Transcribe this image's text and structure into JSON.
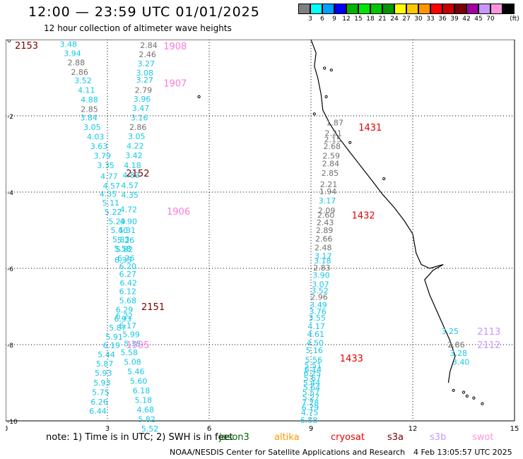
{
  "header": {
    "title": "12:00 — 23:59 UTC 01/01/2025",
    "subtitle": "12 hour collection of altimeter wave heights"
  },
  "color_scale": {
    "unit": "(ft)",
    "bins": [
      {
        "label": "",
        "color": "#7f7f7f"
      },
      {
        "label": "3",
        "color": "#00ffff"
      },
      {
        "label": "6",
        "color": "#00a0ff"
      },
      {
        "label": "9",
        "color": "#0000ff"
      },
      {
        "label": "12",
        "color": "#00b400"
      },
      {
        "label": "15",
        "color": "#00e600"
      },
      {
        "label": "18",
        "color": "#00c800"
      },
      {
        "label": "21",
        "color": "#009600"
      },
      {
        "label": "24",
        "color": "#ffff00"
      },
      {
        "label": "27",
        "color": "#ffc800"
      },
      {
        "label": "30",
        "color": "#ff9600"
      },
      {
        "label": "33",
        "color": "#ff0000"
      },
      {
        "label": "36",
        "color": "#c80000"
      },
      {
        "label": "39",
        "color": "#780000"
      },
      {
        "label": "42",
        "color": "#a000a0"
      },
      {
        "label": "45",
        "color": "#c896ff"
      },
      {
        "label": "70",
        "color": "#ff96dc"
      },
      {
        "label": "",
        "color": "#000000"
      }
    ]
  },
  "axes": {
    "x_ticks": [
      "0",
      "3",
      "6",
      "9",
      "12",
      "15"
    ],
    "y_ticks": [
      "0",
      "-2",
      "-4",
      "-6",
      "-8",
      "-10"
    ]
  },
  "colors": {
    "gray": "#707070",
    "cyan": "#14c8e6",
    "pink": "#ff78dc",
    "darkred": "#780000",
    "red": "#e60000"
  },
  "passes": [
    {
      "label": "2153",
      "x": 0.27,
      "y": -0.15,
      "color": "darkred"
    },
    {
      "label": "2152",
      "x": 3.55,
      "y": -3.5,
      "color": "darkred"
    },
    {
      "label": "2151",
      "x": 4.0,
      "y": -7.0,
      "color": "darkred"
    },
    {
      "label": "1908",
      "x": 4.65,
      "y": -0.17,
      "color": "pink"
    },
    {
      "label": "1907",
      "x": 4.65,
      "y": -1.14,
      "color": "pink"
    },
    {
      "label": "1906",
      "x": 4.75,
      "y": -4.5,
      "color": "pink"
    },
    {
      "label": "1905",
      "x": 3.55,
      "y": -8.0,
      "color": "pink"
    },
    {
      "label": "1431",
      "x": 10.4,
      "y": -2.3,
      "color": "red"
    },
    {
      "label": "1432",
      "x": 10.2,
      "y": -4.6,
      "color": "red"
    },
    {
      "label": "1433",
      "x": 9.85,
      "y": -8.35,
      "color": "red"
    },
    {
      "label": "2113",
      "x": 13.9,
      "y": -7.65,
      "color": "lavender"
    },
    {
      "label": "2112",
      "x": 13.9,
      "y": -8.0,
      "color": "lavender"
    }
  ],
  "measurements": [
    {
      "v": "3.48",
      "x": 1.85,
      "y": -0.12,
      "c": "cyan"
    },
    {
      "v": "3.94",
      "x": 1.97,
      "y": -0.36,
      "c": "cyan"
    },
    {
      "v": "2.88",
      "x": 2.08,
      "y": -0.6,
      "c": "gray"
    },
    {
      "v": "2.86",
      "x": 2.18,
      "y": -0.85,
      "c": "gray"
    },
    {
      "v": "3.52",
      "x": 2.28,
      "y": -1.07,
      "c": "cyan"
    },
    {
      "v": "4.11",
      "x": 2.38,
      "y": -1.32,
      "c": "cyan"
    },
    {
      "v": "4.88",
      "x": 2.47,
      "y": -1.57,
      "c": "cyan"
    },
    {
      "v": "2.85",
      "x": 2.47,
      "y": -1.82,
      "c": "gray"
    },
    {
      "v": "3.84",
      "x": 2.45,
      "y": -2.05,
      "c": "cyan"
    },
    {
      "v": "3.05",
      "x": 2.55,
      "y": -2.3,
      "c": "cyan"
    },
    {
      "v": "4.03",
      "x": 2.65,
      "y": -2.55,
      "c": "cyan"
    },
    {
      "v": "3.63",
      "x": 2.75,
      "y": -2.8,
      "c": "cyan"
    },
    {
      "v": "3.79",
      "x": 2.85,
      "y": -3.05,
      "c": "cyan"
    },
    {
      "v": "3.35",
      "x": 2.95,
      "y": -3.3,
      "c": "cyan"
    },
    {
      "v": "4.77",
      "x": 3.05,
      "y": -3.58,
      "c": "cyan"
    },
    {
      "v": "4.57",
      "x": 3.12,
      "y": -3.83,
      "c": "cyan"
    },
    {
      "v": "4.35",
      "x": 3.02,
      "y": -4.05,
      "c": "cyan"
    },
    {
      "v": "5.11",
      "x": 3.1,
      "y": -4.28,
      "c": "cyan"
    },
    {
      "v": "5.22",
      "x": 3.17,
      "y": -4.52,
      "c": "cyan"
    },
    {
      "v": "5.29",
      "x": 3.28,
      "y": -4.77,
      "c": "cyan"
    },
    {
      "v": "5.40",
      "x": 3.35,
      "y": -5.0,
      "c": "cyan"
    },
    {
      "v": "5.83",
      "x": 3.4,
      "y": -5.24,
      "c": "cyan"
    },
    {
      "v": "5.58",
      "x": 3.45,
      "y": -5.48,
      "c": "cyan"
    },
    {
      "v": "6.26",
      "x": 3.55,
      "y": -5.73,
      "c": "cyan"
    },
    {
      "v": "6.20",
      "x": 3.6,
      "y": -5.94,
      "c": "cyan"
    },
    {
      "v": "6.27",
      "x": 3.6,
      "y": -6.15,
      "c": "cyan"
    },
    {
      "v": "6.42",
      "x": 3.62,
      "y": -6.38,
      "c": "cyan"
    },
    {
      "v": "6.12",
      "x": 3.6,
      "y": -6.6,
      "c": "cyan"
    },
    {
      "v": "5.68",
      "x": 3.6,
      "y": -6.84,
      "c": "cyan"
    },
    {
      "v": "6.29",
      "x": 3.5,
      "y": -7.08,
      "c": "cyan"
    },
    {
      "v": "6.93",
      "x": 3.45,
      "y": -7.32,
      "c": "cyan"
    },
    {
      "v": "5.87",
      "x": 3.3,
      "y": -7.56,
      "c": "cyan"
    },
    {
      "v": "5.91",
      "x": 3.2,
      "y": -7.8,
      "c": "cyan"
    },
    {
      "v": "6.19",
      "x": 3.12,
      "y": -8.02,
      "c": "cyan"
    },
    {
      "v": "5.44",
      "x": 2.97,
      "y": -8.26,
      "c": "cyan"
    },
    {
      "v": "5.87",
      "x": 2.92,
      "y": -8.5,
      "c": "cyan"
    },
    {
      "v": "5.93",
      "x": 2.88,
      "y": -8.74,
      "c": "cyan"
    },
    {
      "v": "5.93",
      "x": 2.84,
      "y": -9.0,
      "c": "cyan"
    },
    {
      "v": "5.75",
      "x": 2.8,
      "y": -9.25,
      "c": "cyan"
    },
    {
      "v": "6.26",
      "x": 2.76,
      "y": -9.5,
      "c": "cyan"
    },
    {
      "v": "6.44",
      "x": 2.72,
      "y": -9.74,
      "c": "cyan"
    },
    {
      "v": "2.84",
      "x": 4.22,
      "y": -0.15,
      "c": "gray"
    },
    {
      "v": "2.46",
      "x": 4.18,
      "y": -0.39,
      "c": "gray"
    },
    {
      "v": "3.27",
      "x": 4.14,
      "y": -0.63,
      "c": "cyan"
    },
    {
      "v": "3.08",
      "x": 4.1,
      "y": -0.87,
      "c": "cyan"
    },
    {
      "v": "3.27",
      "x": 4.1,
      "y": -1.06,
      "c": "cyan"
    },
    {
      "v": "2.79",
      "x": 4.06,
      "y": -1.32,
      "c": "gray"
    },
    {
      "v": "3.96",
      "x": 4.02,
      "y": -1.56,
      "c": "cyan"
    },
    {
      "v": "3.47",
      "x": 3.98,
      "y": -1.8,
      "c": "cyan"
    },
    {
      "v": "3.16",
      "x": 3.94,
      "y": -2.05,
      "c": "cyan"
    },
    {
      "v": "2.86",
      "x": 3.9,
      "y": -2.3,
      "c": "gray"
    },
    {
      "v": "3.05",
      "x": 3.86,
      "y": -2.54,
      "c": "cyan"
    },
    {
      "v": "4.22",
      "x": 3.82,
      "y": -2.79,
      "c": "cyan"
    },
    {
      "v": "3.42",
      "x": 3.78,
      "y": -3.04,
      "c": "cyan"
    },
    {
      "v": "4.18",
      "x": 3.74,
      "y": -3.3,
      "c": "cyan"
    },
    {
      "v": "4.83",
      "x": 3.7,
      "y": -3.56,
      "c": "cyan"
    },
    {
      "v": "4.57",
      "x": 3.66,
      "y": -3.82,
      "c": "cyan"
    },
    {
      "v": "4.35",
      "x": 3.66,
      "y": -4.07,
      "c": "cyan"
    },
    {
      "v": "4.72",
      "x": 3.62,
      "y": -4.45,
      "c": "cyan"
    },
    {
      "v": "4.90",
      "x": 3.62,
      "y": -4.77,
      "c": "cyan"
    },
    {
      "v": "5.31",
      "x": 3.58,
      "y": -5.0,
      "c": "cyan"
    },
    {
      "v": "5.26",
      "x": 3.54,
      "y": -5.26,
      "c": "cyan"
    },
    {
      "v": "5.82",
      "x": 3.5,
      "y": -5.5,
      "c": "cyan"
    },
    {
      "v": "6.35",
      "x": 3.46,
      "y": -5.78,
      "c": "cyan"
    },
    {
      "v": "6.22",
      "x": 3.5,
      "y": -7.25,
      "c": "cyan"
    },
    {
      "v": "6.17",
      "x": 3.6,
      "y": -7.5,
      "c": "cyan"
    },
    {
      "v": "5.99",
      "x": 3.7,
      "y": -7.73,
      "c": "cyan"
    },
    {
      "v": "5.35",
      "x": 3.74,
      "y": -7.97,
      "c": "cyan"
    },
    {
      "v": "5.58",
      "x": 3.64,
      "y": -8.2,
      "c": "cyan"
    },
    {
      "v": "5.08",
      "x": 3.74,
      "y": -8.45,
      "c": "cyan"
    },
    {
      "v": "5.46",
      "x": 3.84,
      "y": -8.7,
      "c": "cyan"
    },
    {
      "v": "5.60",
      "x": 3.92,
      "y": -8.95,
      "c": "cyan"
    },
    {
      "v": "6.18",
      "x": 4.0,
      "y": -9.2,
      "c": "cyan"
    },
    {
      "v": "5.18",
      "x": 4.06,
      "y": -9.45,
      "c": "cyan"
    },
    {
      "v": "4.68",
      "x": 4.12,
      "y": -9.7,
      "c": "cyan"
    },
    {
      "v": "5.82",
      "x": 4.16,
      "y": -9.95,
      "c": "cyan"
    },
    {
      "v": "5.52",
      "x": 4.25,
      "y": -10.2,
      "c": "cyan"
    },
    {
      "v": "1.87",
      "x": 9.7,
      "y": -2.18,
      "c": "gray"
    },
    {
      "v": "2.21",
      "x": 9.66,
      "y": -2.45,
      "c": "gray"
    },
    {
      "v": "2.15",
      "x": 9.64,
      "y": -2.62,
      "c": "gray"
    },
    {
      "v": "2.68",
      "x": 9.62,
      "y": -2.8,
      "c": "gray"
    },
    {
      "v": "2.59",
      "x": 9.6,
      "y": -3.05,
      "c": "gray"
    },
    {
      "v": "2.84",
      "x": 9.58,
      "y": -3.25,
      "c": "gray"
    },
    {
      "v": "2.85",
      "x": 9.56,
      "y": -3.5,
      "c": "gray"
    },
    {
      "v": "2.21",
      "x": 9.52,
      "y": -3.8,
      "c": "gray"
    },
    {
      "v": "1.94",
      "x": 9.5,
      "y": -3.98,
      "c": "gray"
    },
    {
      "v": "3.17",
      "x": 9.48,
      "y": -4.22,
      "c": "cyan"
    },
    {
      "v": "2.09",
      "x": 9.46,
      "y": -4.48,
      "c": "gray"
    },
    {
      "v": "2.60",
      "x": 9.44,
      "y": -4.6,
      "c": "gray"
    },
    {
      "v": "2.43",
      "x": 9.42,
      "y": -4.8,
      "c": "gray"
    },
    {
      "v": "2.89",
      "x": 9.4,
      "y": -5.0,
      "c": "gray"
    },
    {
      "v": "2.66",
      "x": 9.38,
      "y": -5.22,
      "c": "gray"
    },
    {
      "v": "2.48",
      "x": 9.36,
      "y": -5.45,
      "c": "gray"
    },
    {
      "v": "3.17",
      "x": 9.36,
      "y": -5.68,
      "c": "cyan"
    },
    {
      "v": "3.18",
      "x": 9.34,
      "y": -5.8,
      "c": "cyan"
    },
    {
      "v": "2.83",
      "x": 9.32,
      "y": -5.98,
      "c": "gray"
    },
    {
      "v": "3.90",
      "x": 9.3,
      "y": -6.18,
      "c": "cyan"
    },
    {
      "v": "3.07",
      "x": 9.28,
      "y": -6.42,
      "c": "cyan"
    },
    {
      "v": "3.52",
      "x": 9.26,
      "y": -6.58,
      "c": "cyan"
    },
    {
      "v": "2.96",
      "x": 9.24,
      "y": -6.75,
      "c": "gray"
    },
    {
      "v": "3.49",
      "x": 9.22,
      "y": -6.95,
      "c": "cyan"
    },
    {
      "v": "3.76",
      "x": 9.2,
      "y": -7.13,
      "c": "cyan"
    },
    {
      "v": "3.55",
      "x": 9.18,
      "y": -7.3,
      "c": "cyan"
    },
    {
      "v": "4.17",
      "x": 9.16,
      "y": -7.52,
      "c": "cyan"
    },
    {
      "v": "4.61",
      "x": 9.14,
      "y": -7.72,
      "c": "cyan"
    },
    {
      "v": "4.50",
      "x": 9.12,
      "y": -7.95,
      "c": "cyan"
    },
    {
      "v": "5.16",
      "x": 9.1,
      "y": -8.15,
      "c": "cyan"
    },
    {
      "v": "5.56",
      "x": 9.08,
      "y": -8.4,
      "c": "cyan"
    },
    {
      "v": "5.51",
      "x": 9.06,
      "y": -8.55,
      "c": "cyan"
    },
    {
      "v": "6.14",
      "x": 9.06,
      "y": -8.65,
      "c": "cyan"
    },
    {
      "v": "6.25",
      "x": 9.04,
      "y": -8.75,
      "c": "cyan"
    },
    {
      "v": "5.67",
      "x": 9.04,
      "y": -8.88,
      "c": "cyan"
    },
    {
      "v": "5.44",
      "x": 9.02,
      "y": -9.0,
      "c": "cyan"
    },
    {
      "v": "5.64",
      "x": 9.02,
      "y": -9.12,
      "c": "cyan"
    },
    {
      "v": "5.57",
      "x": 9.0,
      "y": -9.25,
      "c": "cyan"
    },
    {
      "v": "5.27",
      "x": 9.0,
      "y": -9.38,
      "c": "cyan"
    },
    {
      "v": "7.28",
      "x": 8.98,
      "y": -9.52,
      "c": "cyan"
    },
    {
      "v": "6.79",
      "x": 8.98,
      "y": -9.65,
      "c": "cyan"
    },
    {
      "v": "4.75",
      "x": 8.96,
      "y": -9.78,
      "c": "cyan"
    },
    {
      "v": "6.58",
      "x": 8.94,
      "y": -9.98,
      "c": "cyan"
    },
    {
      "v": "3.25",
      "x": 13.1,
      "y": -7.65,
      "c": "cyan"
    },
    {
      "v": "2.86",
      "x": 13.28,
      "y": -8.0,
      "c": "gray"
    },
    {
      "v": "3.28",
      "x": 13.35,
      "y": -8.22,
      "c": "cyan"
    },
    {
      "v": "3.40",
      "x": 13.42,
      "y": -8.45,
      "c": "cyan"
    }
  ],
  "footer": {
    "note": "note:  1) Time is in UTC; 2) SWH is in feet",
    "satellites": [
      {
        "name": "jason3",
        "color": "#006400"
      },
      {
        "name": "altika",
        "color": "#ff9600"
      },
      {
        "name": "cryosat",
        "color": "#e60000"
      },
      {
        "name": "s3a",
        "color": "#780000"
      },
      {
        "name": "s3b",
        "color": "#c896ff"
      },
      {
        "name": "swot",
        "color": "#ff96dc"
      }
    ],
    "credit": "NOAA/NESDIS Center for Satellite Applications and Research",
    "timestamp": "4 Feb 13:05:57 UTC 2025"
  }
}
